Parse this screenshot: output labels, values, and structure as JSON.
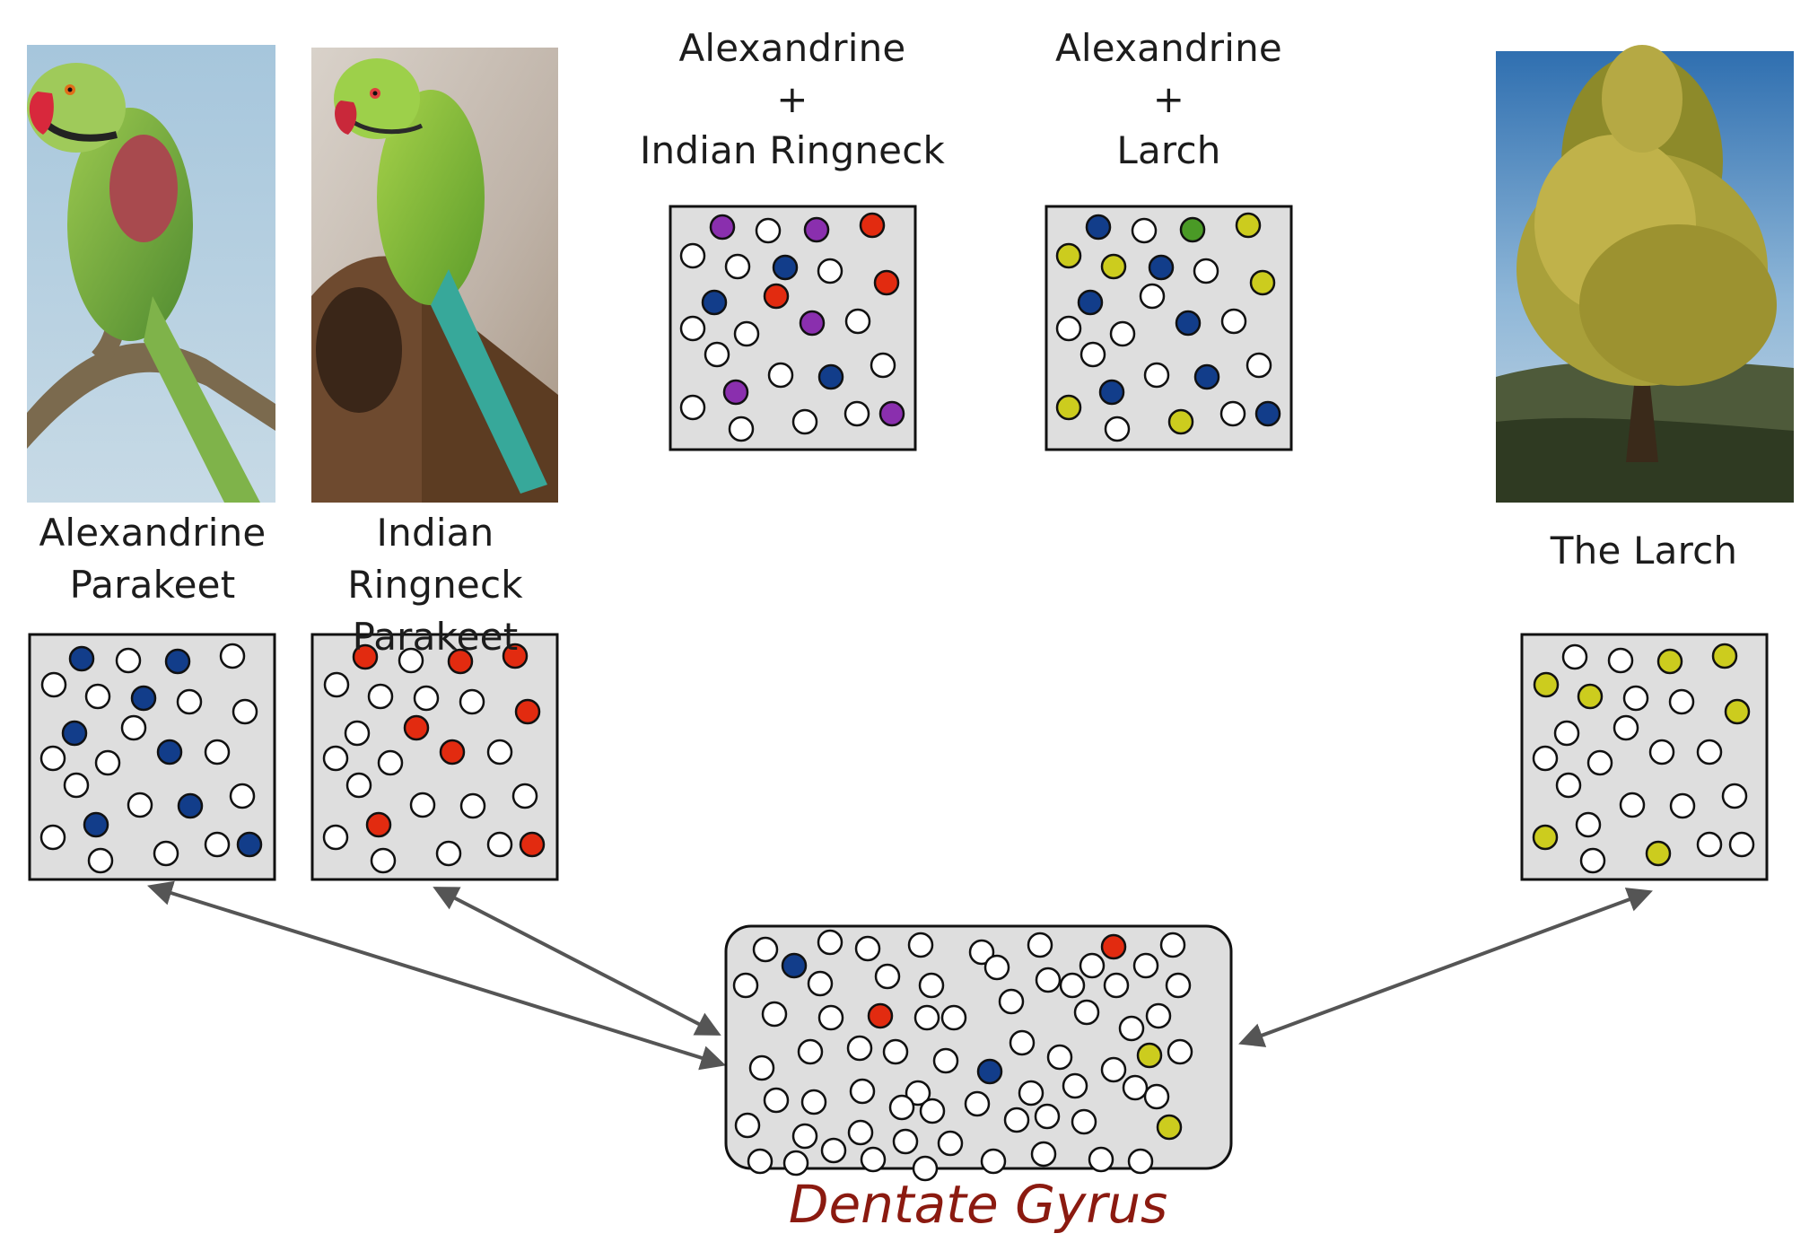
{
  "panels": {
    "alex_parakeet": {
      "label_lines": [
        "Alexandrine",
        "Parakeet"
      ],
      "active_color": "blue",
      "dots": [
        [
          58,
          27,
          "b"
        ],
        [
          110,
          29,
          "w"
        ],
        [
          165,
          30,
          "b"
        ],
        [
          226,
          24,
          "w"
        ],
        [
          27,
          56,
          "w"
        ],
        [
          76,
          69,
          "w"
        ],
        [
          127,
          71,
          "b"
        ],
        [
          178,
          75,
          "w"
        ],
        [
          240,
          86,
          "w"
        ],
        [
          50,
          110,
          "b"
        ],
        [
          116,
          104,
          "w"
        ],
        [
          26,
          138,
          "w"
        ],
        [
          87,
          143,
          "w"
        ],
        [
          156,
          131,
          "b"
        ],
        [
          209,
          131,
          "w"
        ],
        [
          52,
          168,
          "w"
        ],
        [
          123,
          190,
          "w"
        ],
        [
          179,
          191,
          "b"
        ],
        [
          237,
          180,
          "w"
        ],
        [
          74,
          212,
          "b"
        ],
        [
          26,
          226,
          "w"
        ],
        [
          79,
          252,
          "w"
        ],
        [
          152,
          244,
          "w"
        ],
        [
          209,
          234,
          "w"
        ],
        [
          245,
          234,
          "b"
        ]
      ]
    },
    "ringneck_parakeet": {
      "label_lines": [
        "Indian Ringneck",
        "Parakeet"
      ],
      "active_color": "red",
      "dots": [
        [
          59,
          25,
          "r"
        ],
        [
          110,
          29,
          "w"
        ],
        [
          165,
          30,
          "r"
        ],
        [
          226,
          24,
          "r"
        ],
        [
          27,
          56,
          "w"
        ],
        [
          76,
          69,
          "w"
        ],
        [
          127,
          71,
          "w"
        ],
        [
          178,
          75,
          "w"
        ],
        [
          240,
          86,
          "r"
        ],
        [
          50,
          110,
          "w"
        ],
        [
          116,
          104,
          "r"
        ],
        [
          26,
          138,
          "w"
        ],
        [
          87,
          143,
          "w"
        ],
        [
          156,
          131,
          "r"
        ],
        [
          209,
          131,
          "w"
        ],
        [
          52,
          168,
          "w"
        ],
        [
          123,
          190,
          "w"
        ],
        [
          179,
          191,
          "w"
        ],
        [
          237,
          180,
          "w"
        ],
        [
          74,
          212,
          "r"
        ],
        [
          26,
          226,
          "w"
        ],
        [
          79,
          252,
          "w"
        ],
        [
          152,
          244,
          "w"
        ],
        [
          209,
          234,
          "w"
        ],
        [
          245,
          234,
          "r"
        ]
      ]
    },
    "the_larch": {
      "label_lines": [
        "The Larch"
      ],
      "active_color": "yellow",
      "dots": [
        [
          59,
          25,
          "w"
        ],
        [
          110,
          29,
          "w"
        ],
        [
          165,
          30,
          "y"
        ],
        [
          226,
          24,
          "y"
        ],
        [
          27,
          56,
          "y"
        ],
        [
          76,
          69,
          "y"
        ],
        [
          127,
          71,
          "w"
        ],
        [
          178,
          75,
          "w"
        ],
        [
          240,
          86,
          "y"
        ],
        [
          50,
          110,
          "w"
        ],
        [
          116,
          104,
          "w"
        ],
        [
          26,
          138,
          "w"
        ],
        [
          87,
          143,
          "w"
        ],
        [
          156,
          131,
          "w"
        ],
        [
          209,
          131,
          "w"
        ],
        [
          52,
          168,
          "w"
        ],
        [
          123,
          190,
          "w"
        ],
        [
          179,
          191,
          "w"
        ],
        [
          237,
          180,
          "w"
        ],
        [
          74,
          212,
          "w"
        ],
        [
          26,
          226,
          "y"
        ],
        [
          79,
          252,
          "w"
        ],
        [
          152,
          244,
          "y"
        ],
        [
          209,
          234,
          "w"
        ],
        [
          245,
          234,
          "w"
        ]
      ]
    },
    "alex_ringneck": {
      "label_lines": [
        "Alexandrine",
        "+",
        "Indian Ringneck"
      ],
      "dots": [
        [
          58,
          23,
          "p"
        ],
        [
          109,
          27,
          "w"
        ],
        [
          163,
          26,
          "p"
        ],
        [
          225,
          21,
          "r"
        ],
        [
          25,
          55,
          "w"
        ],
        [
          75,
          67,
          "w"
        ],
        [
          128,
          68,
          "b"
        ],
        [
          178,
          72,
          "w"
        ],
        [
          241,
          85,
          "r"
        ],
        [
          49,
          107,
          "b"
        ],
        [
          118,
          100,
          "r"
        ],
        [
          25,
          136,
          "w"
        ],
        [
          85,
          142,
          "w"
        ],
        [
          158,
          130,
          "p"
        ],
        [
          209,
          128,
          "w"
        ],
        [
          52,
          165,
          "w"
        ],
        [
          123,
          188,
          "w"
        ],
        [
          179,
          190,
          "b"
        ],
        [
          237,
          177,
          "w"
        ],
        [
          73,
          207,
          "p"
        ],
        [
          25,
          224,
          "w"
        ],
        [
          79,
          248,
          "w"
        ],
        [
          150,
          240,
          "w"
        ],
        [
          208,
          231,
          "w"
        ],
        [
          247,
          231,
          "p"
        ]
      ]
    },
    "alex_larch": {
      "label_lines": [
        "Alexandrine",
        "+",
        "Larch"
      ],
      "dots": [
        [
          58,
          23,
          "b"
        ],
        [
          109,
          27,
          "w"
        ],
        [
          163,
          26,
          "g"
        ],
        [
          225,
          21,
          "y"
        ],
        [
          25,
          55,
          "y"
        ],
        [
          75,
          67,
          "y"
        ],
        [
          128,
          68,
          "b"
        ],
        [
          178,
          72,
          "w"
        ],
        [
          241,
          85,
          "y"
        ],
        [
          49,
          107,
          "b"
        ],
        [
          118,
          100,
          "w"
        ],
        [
          25,
          136,
          "w"
        ],
        [
          85,
          142,
          "w"
        ],
        [
          158,
          130,
          "b"
        ],
        [
          209,
          128,
          "w"
        ],
        [
          52,
          165,
          "w"
        ],
        [
          123,
          188,
          "w"
        ],
        [
          179,
          190,
          "b"
        ],
        [
          237,
          177,
          "w"
        ],
        [
          73,
          207,
          "b"
        ],
        [
          25,
          224,
          "y"
        ],
        [
          79,
          248,
          "w"
        ],
        [
          150,
          240,
          "y"
        ],
        [
          208,
          231,
          "w"
        ],
        [
          247,
          231,
          "b"
        ]
      ]
    }
  },
  "dentate_gyrus": {
    "label": "Dentate Gyrus",
    "dots": [
      [
        44,
        26,
        "w"
      ],
      [
        116,
        18,
        "w"
      ],
      [
        158,
        25,
        "w"
      ],
      [
        217,
        21,
        "w"
      ],
      [
        285,
        29,
        "w"
      ],
      [
        350,
        21,
        "w"
      ],
      [
        432,
        23,
        "r"
      ],
      [
        498,
        21,
        "w"
      ],
      [
        76,
        44,
        "b"
      ],
      [
        105,
        64,
        "w"
      ],
      [
        180,
        56,
        "w"
      ],
      [
        229,
        66,
        "w"
      ],
      [
        302,
        46,
        "w"
      ],
      [
        359,
        60,
        "w"
      ],
      [
        408,
        44,
        "w"
      ],
      [
        468,
        44,
        "w"
      ],
      [
        22,
        66,
        "w"
      ],
      [
        318,
        84,
        "w"
      ],
      [
        386,
        66,
        "w"
      ],
      [
        435,
        66,
        "w"
      ],
      [
        504,
        66,
        "w"
      ],
      [
        54,
        98,
        "w"
      ],
      [
        117,
        102,
        "w"
      ],
      [
        172,
        100,
        "r"
      ],
      [
        224,
        102,
        "w"
      ],
      [
        254,
        102,
        "w"
      ],
      [
        402,
        96,
        "w"
      ],
      [
        452,
        114,
        "w"
      ],
      [
        482,
        100,
        "w"
      ],
      [
        94,
        140,
        "w"
      ],
      [
        149,
        136,
        "w"
      ],
      [
        189,
        140,
        "w"
      ],
      [
        245,
        150,
        "w"
      ],
      [
        330,
        130,
        "w"
      ],
      [
        372,
        146,
        "w"
      ],
      [
        472,
        144,
        "y"
      ],
      [
        506,
        140,
        "w"
      ],
      [
        40,
        158,
        "w"
      ],
      [
        294,
        162,
        "b"
      ],
      [
        432,
        160,
        "w"
      ],
      [
        56,
        194,
        "w"
      ],
      [
        98,
        196,
        "w"
      ],
      [
        152,
        184,
        "w"
      ],
      [
        214,
        186,
        "w"
      ],
      [
        340,
        186,
        "w"
      ],
      [
        389,
        178,
        "w"
      ],
      [
        456,
        180,
        "w"
      ],
      [
        480,
        190,
        "w"
      ],
      [
        196,
        202,
        "w"
      ],
      [
        230,
        206,
        "w"
      ],
      [
        280,
        198,
        "w"
      ],
      [
        324,
        216,
        "w"
      ],
      [
        358,
        212,
        "w"
      ],
      [
        399,
        218,
        "w"
      ],
      [
        494,
        224,
        "y"
      ],
      [
        24,
        222,
        "w"
      ],
      [
        88,
        234,
        "w"
      ],
      [
        150,
        230,
        "w"
      ],
      [
        200,
        240,
        "w"
      ],
      [
        250,
        242,
        "w"
      ],
      [
        38,
        262,
        "w"
      ],
      [
        78,
        264,
        "w"
      ],
      [
        120,
        250,
        "w"
      ],
      [
        164,
        260,
        "w"
      ],
      [
        222,
        270,
        "w"
      ],
      [
        298,
        262,
        "w"
      ],
      [
        354,
        254,
        "w"
      ],
      [
        418,
        260,
        "w"
      ],
      [
        462,
        262,
        "w"
      ]
    ]
  },
  "colors": {
    "w": "#ffffff",
    "b": "#123d8a",
    "r": "#e22b10",
    "y": "#cccc1e",
    "p": "#8a2fae",
    "g": "#4a9a26",
    "box_fill": "#dedede",
    "dg_label": "#8b1a10",
    "arrow": "#555555"
  }
}
